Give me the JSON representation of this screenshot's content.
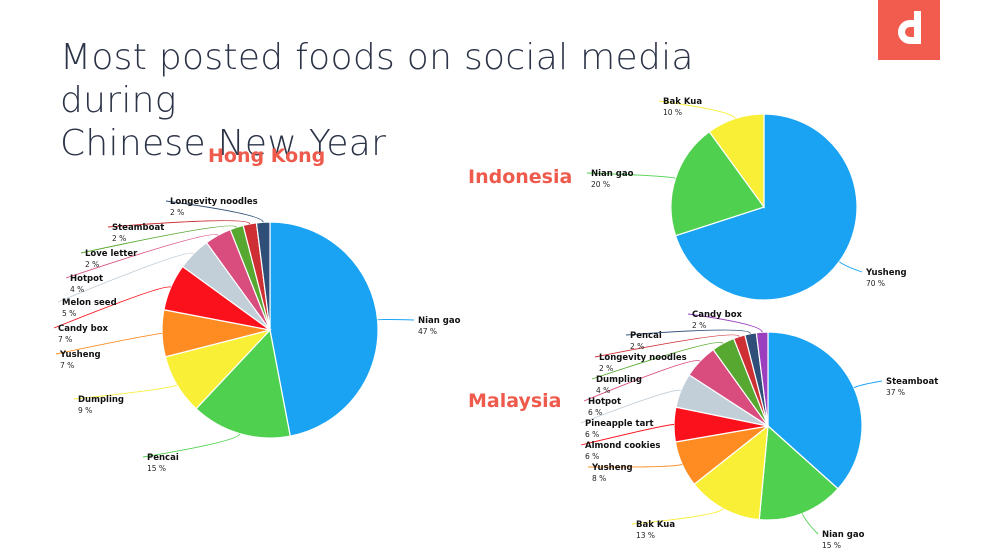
{
  "title_line1": "Most posted foods on social media during",
  "title_line2": "Chinese New Year",
  "colors": {
    "accent": "#ee5a4c",
    "title": "#2b3347"
  },
  "logo": {
    "name": "brand-logo",
    "color": "#f25c4f"
  },
  "chart_data": [
    {
      "type": "pie",
      "title": "Hong Kong",
      "slices": [
        {
          "label": "Nian gao",
          "value": 47,
          "value_label": "47 %",
          "color": "#1aa3f3"
        },
        {
          "label": "Pencai",
          "value": 15,
          "value_label": "15 %",
          "color": "#4fd14f"
        },
        {
          "label": "Dumpling",
          "value": 9,
          "value_label": "9 %",
          "color": "#f8ef36"
        },
        {
          "label": "Yusheng",
          "value": 7,
          "value_label": "7 %",
          "color": "#fe8c22"
        },
        {
          "label": "Candy box",
          "value": 7,
          "value_label": "7 %",
          "color": "#fb111c"
        },
        {
          "label": "Melon seed",
          "value": 5,
          "value_label": "5 %",
          "color": "#c2ced8"
        },
        {
          "label": "Hotpot",
          "value": 4,
          "value_label": "4 %",
          "color": "#d94c7e"
        },
        {
          "label": "Love letter",
          "value": 2,
          "value_label": "2 %",
          "color": "#56a830"
        },
        {
          "label": "Steamboat",
          "value": 2,
          "value_label": "2 %",
          "color": "#cd2f34"
        },
        {
          "label": "Longevity noodles",
          "value": 2,
          "value_label": "2 %",
          "color": "#2f4e78"
        }
      ]
    },
    {
      "type": "pie",
      "title": "Indonesia",
      "slices": [
        {
          "label": "Yusheng",
          "value": 70,
          "value_label": "70 %",
          "color": "#1aa3f3"
        },
        {
          "label": "Nian gao",
          "value": 20,
          "value_label": "20 %",
          "color": "#4fd14f"
        },
        {
          "label": "Bak Kua",
          "value": 10,
          "value_label": "10 %",
          "color": "#f8ef36"
        }
      ]
    },
    {
      "type": "pie",
      "title": "Malaysia",
      "slices": [
        {
          "label": "Steamboat",
          "value": 37,
          "value_label": "37 %",
          "color": "#1aa3f3"
        },
        {
          "label": "Nian gao",
          "value": 15,
          "value_label": "15 %",
          "color": "#4fd14f"
        },
        {
          "label": "Bak Kua",
          "value": 13,
          "value_label": "13 %",
          "color": "#f8ef36"
        },
        {
          "label": "Yusheng",
          "value": 8,
          "value_label": "8 %",
          "color": "#fe8c22"
        },
        {
          "label": "Almond cookies",
          "value": 6,
          "value_label": "6 %",
          "color": "#fb111c"
        },
        {
          "label": "Pineapple tart",
          "value": 6,
          "value_label": "6 %",
          "color": "#c2ced8"
        },
        {
          "label": "Hotpot",
          "value": 6,
          "value_label": "6 %",
          "color": "#d94c7e"
        },
        {
          "label": "Dumpling",
          "value": 4,
          "value_label": "4 %",
          "color": "#56a830"
        },
        {
          "label": "Longevity noodles",
          "value": 2,
          "value_label": "2 %",
          "color": "#cd2f34"
        },
        {
          "label": "Pencai",
          "value": 2,
          "value_label": "2 %",
          "color": "#2f4e78"
        },
        {
          "label": "Candy box",
          "value": 2,
          "value_label": "2 %",
          "color": "#9b3fbf"
        }
      ]
    }
  ]
}
